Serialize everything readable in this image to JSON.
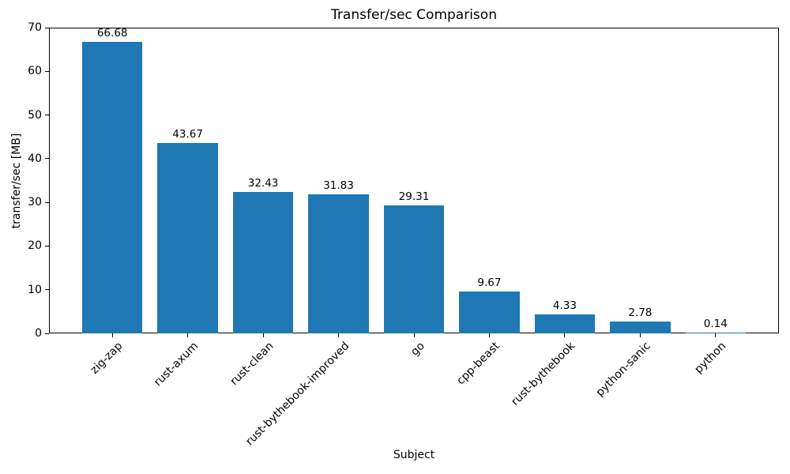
{
  "chart_data": {
    "type": "bar",
    "title": "Transfer/sec Comparison",
    "xlabel": "Subject",
    "ylabel": "transfer/sec [MB]",
    "categories": [
      "zig-zap",
      "rust-axum",
      "rust-clean",
      "rust-bythebook-improved",
      "go",
      "cpp-beast",
      "rust-bythebook",
      "python-sanic",
      "python"
    ],
    "values": [
      66.68,
      43.67,
      32.43,
      31.83,
      29.31,
      9.67,
      4.33,
      2.78,
      0.14
    ],
    "value_labels": [
      "66.68",
      "43.67",
      "32.43",
      "31.83",
      "29.31",
      "9.67",
      "4.33",
      "2.78",
      "0.14"
    ],
    "ylim": [
      0,
      70
    ],
    "yticks": [
      0,
      10,
      20,
      30,
      40,
      50,
      60,
      70
    ],
    "bar_color": "#1f77b4",
    "axis_color": "#000000",
    "grid": false,
    "legend_position": "none"
  }
}
